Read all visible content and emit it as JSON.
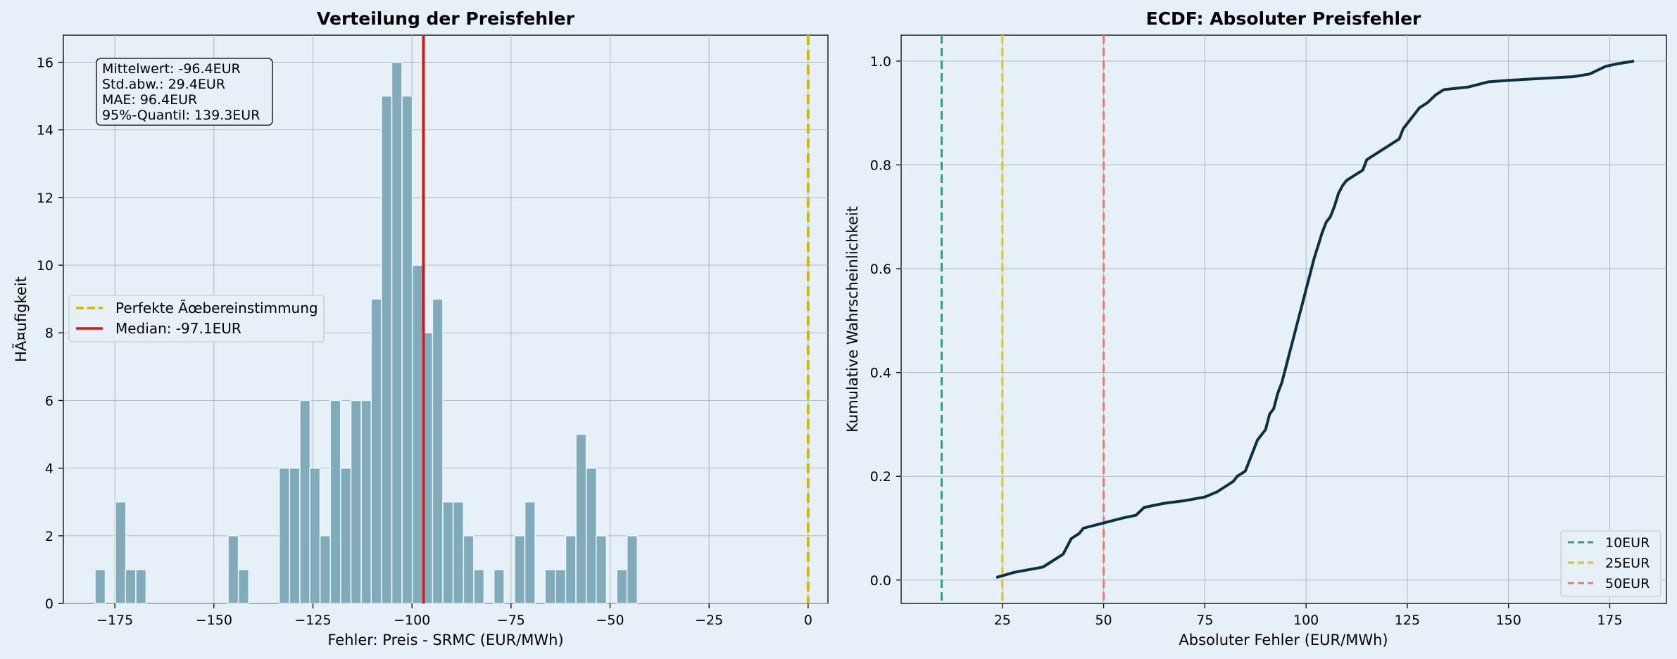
{
  "chart_data": [
    {
      "type": "bar",
      "title": "Verteilung der Preisfehler",
      "xlabel": "Fehler: Preis - SRMC (EUR/MWh)",
      "ylabel": "HÃ¤ufigkeit",
      "xlim": [
        -188,
        5
      ],
      "ylim": [
        0,
        16.8
      ],
      "xticks": [
        -175,
        -150,
        -125,
        -100,
        -75,
        -50,
        -25,
        0
      ],
      "xtick_labels": [
        "−175",
        "−150",
        "−125",
        "−100",
        "−75",
        "−50",
        "−25",
        "0"
      ],
      "yticks": [
        0,
        2,
        4,
        6,
        8,
        10,
        12,
        14,
        16
      ],
      "ytick_labels": [
        "0",
        "2",
        "4",
        "6",
        "8",
        "10",
        "12",
        "14",
        "16"
      ],
      "grid": true,
      "bin_width": 2.58,
      "bins": [
        {
          "x": -180.0,
          "count": 1
        },
        {
          "x": -174.8,
          "count": 3
        },
        {
          "x": -172.3,
          "count": 1
        },
        {
          "x": -169.7,
          "count": 1
        },
        {
          "x": -146.4,
          "count": 2
        },
        {
          "x": -143.8,
          "count": 1
        },
        {
          "x": -133.5,
          "count": 4
        },
        {
          "x": -130.9,
          "count": 4
        },
        {
          "x": -128.3,
          "count": 6
        },
        {
          "x": -125.8,
          "count": 4
        },
        {
          "x": -123.2,
          "count": 2
        },
        {
          "x": -120.6,
          "count": 6
        },
        {
          "x": -118.0,
          "count": 4
        },
        {
          "x": -115.4,
          "count": 6
        },
        {
          "x": -112.8,
          "count": 6
        },
        {
          "x": -110.3,
          "count": 9
        },
        {
          "x": -107.7,
          "count": 15
        },
        {
          "x": -105.1,
          "count": 16
        },
        {
          "x": -102.5,
          "count": 15
        },
        {
          "x": -99.9,
          "count": 10
        },
        {
          "x": -97.4,
          "count": 8
        },
        {
          "x": -94.8,
          "count": 9
        },
        {
          "x": -92.2,
          "count": 3
        },
        {
          "x": -89.6,
          "count": 3
        },
        {
          "x": -87.0,
          "count": 2
        },
        {
          "x": -84.4,
          "count": 1
        },
        {
          "x": -79.3,
          "count": 1
        },
        {
          "x": -74.1,
          "count": 2
        },
        {
          "x": -71.5,
          "count": 3
        },
        {
          "x": -66.4,
          "count": 1
        },
        {
          "x": -63.8,
          "count": 1
        },
        {
          "x": -61.2,
          "count": 2
        },
        {
          "x": -58.6,
          "count": 5
        },
        {
          "x": -56.0,
          "count": 4
        },
        {
          "x": -53.5,
          "count": 2
        },
        {
          "x": -48.3,
          "count": 1
        },
        {
          "x": -45.7,
          "count": 2
        }
      ],
      "vlines": [
        {
          "x": 0,
          "label": "Perfekte Ãœbereinstimmung",
          "color": "#d4b800",
          "style": "dashed"
        },
        {
          "x": -97.1,
          "label": "Median: -97.1EUR",
          "color": "#d7191c",
          "style": "solid"
        }
      ],
      "legend_placement": "center-left",
      "stats_box": {
        "lines": [
          "Mittelwert: -96.4EUR",
          "Std.abw.: 29.4EUR",
          "MAE: 96.4EUR",
          "95%-Quantil: 139.3EUR"
        ],
        "placement": "top-left"
      },
      "bar_color": "#7fabba"
    },
    {
      "type": "line",
      "title": "ECDF: Absoluter Preisfehler",
      "xlabel": "Absoluter Fehler (EUR/MWh)",
      "ylabel": "Kumulative Wahrscheinlichkeit",
      "xlim": [
        0,
        189
      ],
      "ylim": [
        -0.045,
        1.05
      ],
      "xticks": [
        25,
        50,
        75,
        100,
        125,
        150,
        175
      ],
      "xtick_labels": [
        "25",
        "50",
        "75",
        "100",
        "125",
        "150",
        "175"
      ],
      "yticks": [
        0,
        0.2,
        0.4,
        0.6,
        0.8,
        1.0
      ],
      "ytick_labels": [
        "0.0",
        "0.2",
        "0.4",
        "0.6",
        "0.8",
        "1.0"
      ],
      "grid": true,
      "line_color": "#0b3042",
      "points": [
        [
          23.5,
          0.005
        ],
        [
          28,
          0.015
        ],
        [
          35,
          0.025
        ],
        [
          37,
          0.035
        ],
        [
          40,
          0.05
        ],
        [
          42,
          0.08
        ],
        [
          44,
          0.09
        ],
        [
          45,
          0.1
        ],
        [
          50,
          0.11
        ],
        [
          55,
          0.12
        ],
        [
          58,
          0.125
        ],
        [
          60,
          0.14
        ],
        [
          65,
          0.148
        ],
        [
          70,
          0.153
        ],
        [
          75,
          0.16
        ],
        [
          78,
          0.17
        ],
        [
          80,
          0.18
        ],
        [
          82,
          0.19
        ],
        [
          83,
          0.2
        ],
        [
          85,
          0.21
        ],
        [
          86,
          0.23
        ],
        [
          87,
          0.25
        ],
        [
          88,
          0.27
        ],
        [
          90,
          0.29
        ],
        [
          91,
          0.32
        ],
        [
          92,
          0.33
        ],
        [
          93,
          0.36
        ],
        [
          94,
          0.38
        ],
        [
          95,
          0.41
        ],
        [
          96,
          0.44
        ],
        [
          97,
          0.47
        ],
        [
          98,
          0.5
        ],
        [
          99,
          0.53
        ],
        [
          100,
          0.56
        ],
        [
          101,
          0.59
        ],
        [
          102,
          0.62
        ],
        [
          103,
          0.645
        ],
        [
          104,
          0.67
        ],
        [
          105,
          0.69
        ],
        [
          106,
          0.7
        ],
        [
          107,
          0.72
        ],
        [
          108,
          0.745
        ],
        [
          109,
          0.76
        ],
        [
          110,
          0.77
        ],
        [
          112,
          0.78
        ],
        [
          114,
          0.79
        ],
        [
          115,
          0.81
        ],
        [
          117,
          0.82
        ],
        [
          119,
          0.83
        ],
        [
          121,
          0.84
        ],
        [
          123,
          0.85
        ],
        [
          124,
          0.87
        ],
        [
          126,
          0.89
        ],
        [
          128,
          0.91
        ],
        [
          130,
          0.92
        ],
        [
          132,
          0.935
        ],
        [
          134,
          0.945
        ],
        [
          140,
          0.95
        ],
        [
          145,
          0.96
        ],
        [
          150,
          0.963
        ],
        [
          166,
          0.97
        ],
        [
          170,
          0.975
        ],
        [
          174,
          0.99
        ],
        [
          177,
          0.995
        ],
        [
          181,
          1.0
        ]
      ],
      "vlines": [
        {
          "x": 10,
          "label": "10EUR",
          "color": "#3a9a7d",
          "style": "dashed"
        },
        {
          "x": 25,
          "label": "25EUR",
          "color": "#d4c23a",
          "style": "dashed"
        },
        {
          "x": 50,
          "label": "50EUR",
          "color": "#ee7a6e",
          "style": "dashed"
        }
      ],
      "legend_placement": "lower-right"
    }
  ]
}
